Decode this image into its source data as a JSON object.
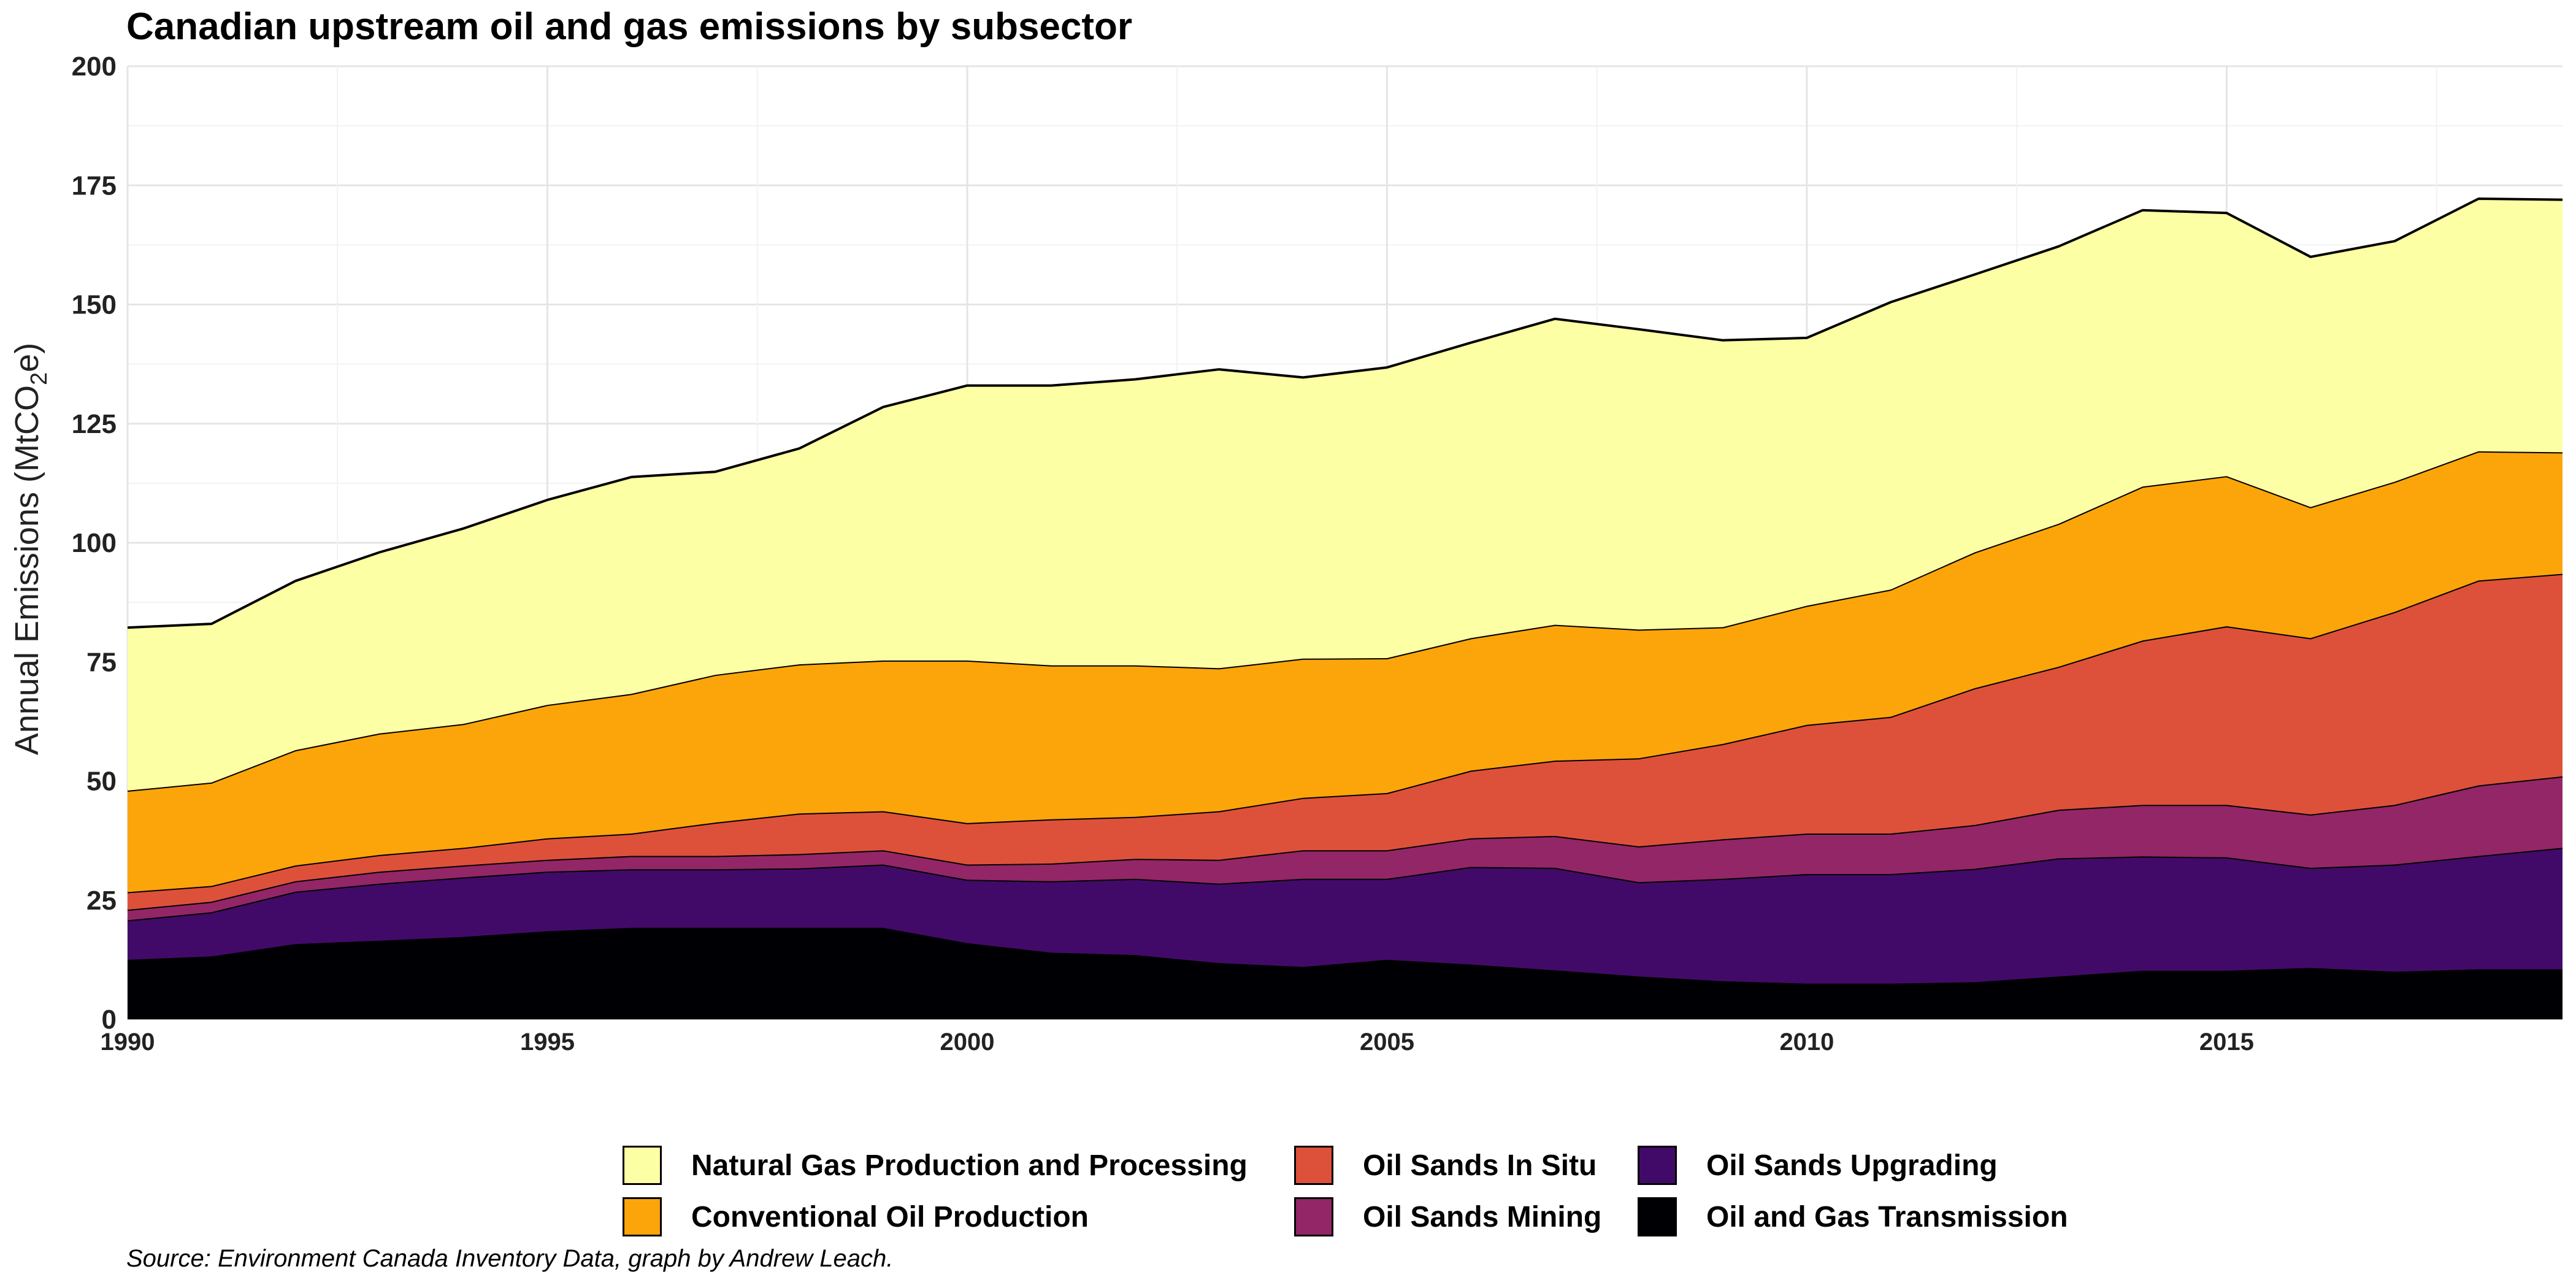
{
  "chart_data": {
    "type": "area",
    "stacked": true,
    "title": "Canadian upstream oil and gas emissions by subsector",
    "ylabel": "Annual Emissions (MtCO2e)",
    "xlabel": "",
    "caption": "Source: Environment Canada Inventory Data, graph by Andrew Leach.",
    "xlim": [
      1990,
      2019
    ],
    "ylim": [
      0,
      200
    ],
    "x_ticks": [
      1990,
      1995,
      2000,
      2005,
      2010,
      2015
    ],
    "y_ticks": [
      0,
      25,
      50,
      75,
      100,
      125,
      150,
      175,
      200
    ],
    "grid": true,
    "legend_position": "bottom",
    "x": [
      1990,
      1991,
      1992,
      1993,
      1994,
      1995,
      1996,
      1997,
      1998,
      1999,
      2000,
      2001,
      2002,
      2003,
      2004,
      2005,
      2006,
      2007,
      2008,
      2009,
      2010,
      2011,
      2012,
      2013,
      2014,
      2015,
      2016,
      2017,
      2018,
      2019
    ],
    "series": [
      {
        "name": "Oil and Gas Transmission",
        "color": "#000004",
        "values": [
          12.5,
          13.2,
          15.8,
          16.5,
          17.3,
          18.5,
          19.2,
          19.2,
          19.2,
          19.2,
          16.0,
          14.0,
          13.5,
          11.8,
          11.0,
          12.5,
          11.5,
          10.3,
          9.0,
          8.0,
          7.5,
          7.5,
          7.8,
          9.0,
          10.2,
          10.2,
          10.8,
          10.0,
          10.5,
          10.5
        ]
      },
      {
        "name": "Oil Sands Upgrading",
        "color": "#420A68",
        "values": [
          8.3,
          9.3,
          11.0,
          12.0,
          12.5,
          12.5,
          12.3,
          12.3,
          12.5,
          13.3,
          13.3,
          15.0,
          16.0,
          16.7,
          18.5,
          17.0,
          20.5,
          21.5,
          19.8,
          21.5,
          23.0,
          23.0,
          23.8,
          24.8,
          24.0,
          23.8,
          21.0,
          22.5,
          23.8,
          25.5
        ]
      },
      {
        "name": "Oil Sands Mining",
        "color": "#932667",
        "values": [
          2.2,
          2.2,
          2.2,
          2.5,
          2.5,
          2.5,
          2.8,
          2.8,
          3.0,
          3.0,
          3.2,
          3.7,
          4.2,
          5.0,
          6.0,
          6.0,
          6.0,
          6.7,
          7.5,
          8.3,
          8.5,
          8.5,
          9.2,
          10.2,
          10.8,
          11.0,
          11.2,
          12.5,
          14.8,
          15.0
        ]
      },
      {
        "name": "Oil Sands In Situ",
        "color": "#DD513A",
        "values": [
          3.7,
          3.3,
          3.3,
          3.5,
          3.7,
          4.5,
          4.7,
          7.0,
          8.5,
          8.2,
          8.7,
          9.3,
          8.8,
          10.2,
          11.0,
          12.0,
          14.2,
          15.8,
          18.5,
          20.0,
          22.8,
          24.5,
          28.7,
          30.0,
          34.5,
          37.5,
          37.0,
          40.5,
          43.0,
          42.5
        ]
      },
      {
        "name": "Conventional Oil Production",
        "color": "#FCA50A",
        "values": [
          21.3,
          21.7,
          24.2,
          25.5,
          26.0,
          28.0,
          29.3,
          31.0,
          31.3,
          31.6,
          34.1,
          32.3,
          31.8,
          30.0,
          29.2,
          28.3,
          27.8,
          28.5,
          27.0,
          24.5,
          25.0,
          26.7,
          28.5,
          30.0,
          32.3,
          31.5,
          27.5,
          27.3,
          27.1,
          25.5
        ]
      },
      {
        "name": "Natural Gas Production and Processing",
        "color": "#FCFFA4",
        "values": [
          34.2,
          33.3,
          35.5,
          38.0,
          41.0,
          43.0,
          45.5,
          42.6,
          45.3,
          53.2,
          57.7,
          58.7,
          60.0,
          62.7,
          59.0,
          61.0,
          62.0,
          64.2,
          63.0,
          60.2,
          56.2,
          60.3,
          58.3,
          58.2,
          58.0,
          55.2,
          52.5,
          50.5,
          53.0,
          53.0
        ]
      }
    ],
    "legend_order": [
      "Natural Gas Production and Processing",
      "Conventional Oil Production",
      "Oil Sands In Situ",
      "Oil Sands Mining",
      "Oil Sands Upgrading",
      "Oil and Gas Transmission"
    ]
  }
}
